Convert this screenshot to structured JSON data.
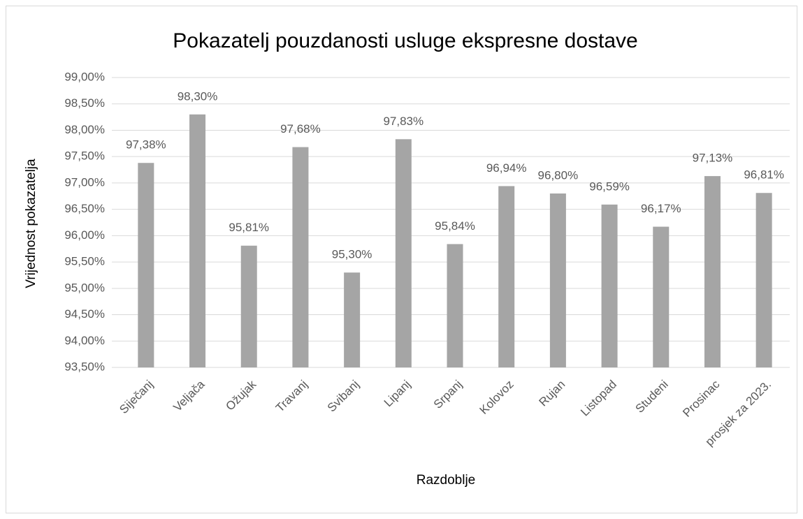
{
  "chart_data": {
    "type": "bar",
    "title": "Pokazatelj pouzdanosti usluge ekspresne dostave",
    "x_label": "Razdoblje",
    "y_label": "Vrijednost pokazatelja",
    "categories": [
      "Siječanj",
      "Veljača",
      "Ožujak",
      "Travanj",
      "Svibanj",
      "Lipanj",
      "Srpanj",
      "Kolovoz",
      "Rujan",
      "Listopad",
      "Studeni",
      "Prosinac",
      "prosjek za 2023."
    ],
    "values": [
      97.38,
      98.3,
      95.81,
      97.68,
      95.3,
      97.83,
      95.84,
      96.94,
      96.8,
      96.59,
      96.17,
      97.13,
      96.81
    ],
    "value_labels": [
      "97,38%",
      "98,30%",
      "95,81%",
      "97,68%",
      "95,30%",
      "97,83%",
      "95,84%",
      "96,94%",
      "96,80%",
      "96,59%",
      "96,17%",
      "97,13%",
      "96,81%"
    ],
    "color": "#a5a5a5",
    "ylim": [
      93.5,
      99
    ],
    "yticks": [
      {
        "value": 93.5,
        "label": "93,50%"
      },
      {
        "value": 94,
        "label": "94,00%"
      },
      {
        "value": 94.5,
        "label": "94,50%"
      },
      {
        "value": 95,
        "label": "95,00%"
      },
      {
        "value": 95.5,
        "label": "95,50%"
      },
      {
        "value": 96,
        "label": "96,00%"
      },
      {
        "value": 96.5,
        "label": "96,50%"
      },
      {
        "value": 97,
        "label": "97,00%"
      },
      {
        "value": 97.5,
        "label": "97,50%"
      },
      {
        "value": 98,
        "label": "98,00%"
      },
      {
        "value": 98.5,
        "label": "98,50%"
      },
      {
        "value": 99,
        "label": "99,00%"
      }
    ],
    "grid": true
  }
}
